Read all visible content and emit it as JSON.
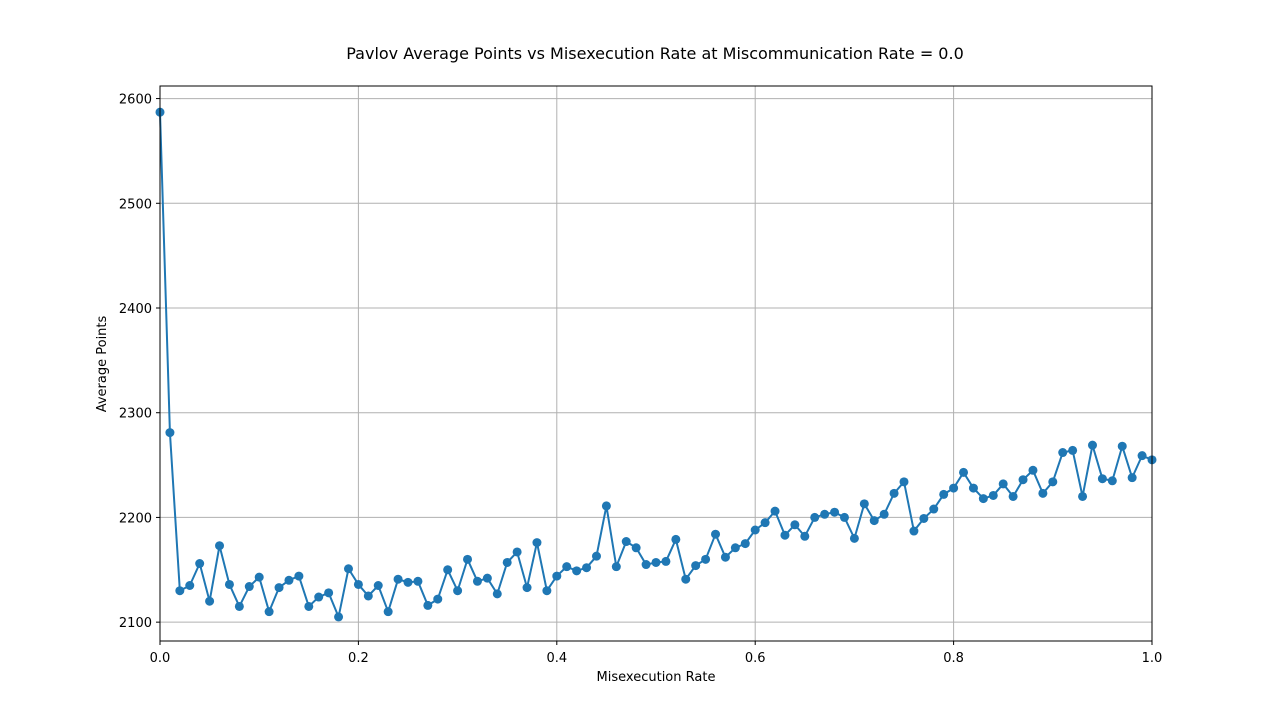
{
  "chart_data": {
    "type": "line",
    "title": "Pavlov Average Points vs Misexecution Rate at Miscommunication Rate = 0.0",
    "xlabel": "Misexecution Rate",
    "ylabel": "Average Points",
    "xlim": [
      0.0,
      1.0
    ],
    "ylim": [
      2082,
      2612
    ],
    "xticks": [
      0.0,
      0.2,
      0.4,
      0.6,
      0.8,
      1.0
    ],
    "xtick_labels": [
      "0.0",
      "0.2",
      "0.4",
      "0.6",
      "0.8",
      "1.0"
    ],
    "yticks": [
      2100,
      2200,
      2300,
      2400,
      2500,
      2600
    ],
    "ytick_labels": [
      "2100",
      "2200",
      "2300",
      "2400",
      "2500",
      "2600"
    ],
    "grid": true,
    "marker": "circle",
    "color": "#1f77b4",
    "series": [
      {
        "x": [
          0.0,
          0.01,
          0.02,
          0.03,
          0.04,
          0.05,
          0.06,
          0.07,
          0.08,
          0.09,
          0.1,
          0.11,
          0.12,
          0.13,
          0.14,
          0.15,
          0.16,
          0.17,
          0.18,
          0.19,
          0.2,
          0.21,
          0.22,
          0.23,
          0.24,
          0.25,
          0.26,
          0.27,
          0.28,
          0.29,
          0.3,
          0.31,
          0.32,
          0.33,
          0.34,
          0.35,
          0.36,
          0.37,
          0.38,
          0.39,
          0.4,
          0.41,
          0.42,
          0.43,
          0.44,
          0.45,
          0.46,
          0.47,
          0.48,
          0.49,
          0.5,
          0.51,
          0.52,
          0.53,
          0.54,
          0.55,
          0.56,
          0.57,
          0.58,
          0.59,
          0.6,
          0.61,
          0.62,
          0.63,
          0.64,
          0.65,
          0.66,
          0.67,
          0.68,
          0.69,
          0.7,
          0.71,
          0.72,
          0.73,
          0.74,
          0.75,
          0.76,
          0.77,
          0.78,
          0.79,
          0.8,
          0.81,
          0.82,
          0.83,
          0.84,
          0.85,
          0.86,
          0.87,
          0.88,
          0.89,
          0.9,
          0.91,
          0.92,
          0.93,
          0.94,
          0.95,
          0.96,
          0.97,
          0.98,
          0.99,
          1.0
        ],
        "y": [
          2587,
          2281,
          2130,
          2135,
          2156,
          2120,
          2173,
          2136,
          2115,
          2134,
          2143,
          2110,
          2133,
          2140,
          2144,
          2115,
          2124,
          2128,
          2105,
          2151,
          2136,
          2125,
          2135,
          2110,
          2141,
          2138,
          2139,
          2116,
          2122,
          2150,
          2130,
          2160,
          2139,
          2142,
          2127,
          2157,
          2167,
          2133,
          2176,
          2130,
          2144,
          2153,
          2149,
          2152,
          2163,
          2211,
          2153,
          2177,
          2171,
          2155,
          2157,
          2158,
          2179,
          2141,
          2154,
          2160,
          2184,
          2162,
          2171,
          2175,
          2188,
          2195,
          2206,
          2183,
          2193,
          2182,
          2200,
          2203,
          2205,
          2200,
          2180,
          2213,
          2197,
          2203,
          2223,
          2234,
          2187,
          2199,
          2208,
          2222,
          2228,
          2243,
          2228,
          2218,
          2221,
          2232,
          2220,
          2236,
          2245,
          2223,
          2234,
          2262,
          2264,
          2220,
          2269,
          2237,
          2235,
          2268,
          2238,
          2259,
          2255
        ]
      }
    ]
  }
}
